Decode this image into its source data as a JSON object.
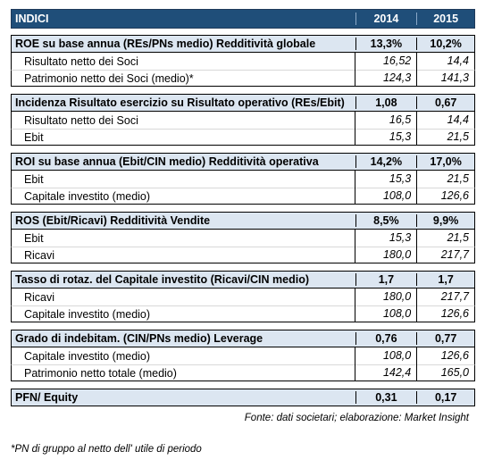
{
  "header": {
    "title": "INDICI",
    "year1": "2014",
    "year2": "2015"
  },
  "sections": [
    {
      "title": "ROE su base annua (REs/PNs medio) Redditività globale",
      "v1": "13,3%",
      "v2": "10,2%",
      "rows": [
        {
          "label": "Risultato netto dei Soci",
          "v1": "16,52",
          "v2": "14,4"
        },
        {
          "label": "Patrimonio netto dei Soci (medio)*",
          "v1": "124,3",
          "v2": "141,3"
        }
      ]
    },
    {
      "title": "Incidenza Risultato esercizio su Risultato operativo (REs/Ebit)",
      "v1": "1,08",
      "v2": "0,67",
      "rows": [
        {
          "label": "Risultato netto dei Soci",
          "v1": "16,5",
          "v2": "14,4"
        },
        {
          "label": "Ebit",
          "v1": "15,3",
          "v2": "21,5"
        }
      ]
    },
    {
      "title": "ROI su base annua (Ebit/CIN medio) Redditività operativa",
      "v1": "14,2%",
      "v2": "17,0%",
      "rows": [
        {
          "label": "Ebit",
          "v1": "15,3",
          "v2": "21,5"
        },
        {
          "label": "Capitale investito (medio)",
          "v1": "108,0",
          "v2": "126,6"
        }
      ]
    },
    {
      "title": "ROS (Ebit/Ricavi) Redditività Vendite",
      "v1": "8,5%",
      "v2": "9,9%",
      "rows": [
        {
          "label": "Ebit",
          "v1": "15,3",
          "v2": "21,5"
        },
        {
          "label": "Ricavi",
          "v1": "180,0",
          "v2": "217,7"
        }
      ]
    },
    {
      "title": "Tasso di rotaz. del Capitale investito (Ricavi/CIN medio)",
      "v1": "1,7",
      "v2": "1,7",
      "rows": [
        {
          "label": "Ricavi",
          "v1": "180,0",
          "v2": "217,7"
        },
        {
          "label": "Capitale investito (medio)",
          "v1": "108,0",
          "v2": "126,6"
        }
      ]
    },
    {
      "title": "Grado di indebitam. (CIN/PNs medio) Leverage",
      "v1": "0,76",
      "v2": "0,77",
      "rows": [
        {
          "label": "Capitale investito (medio)",
          "v1": "108,0",
          "v2": "126,6"
        },
        {
          "label": "Patrimonio netto totale (medio)",
          "v1": "142,4",
          "v2": "165,0"
        }
      ]
    },
    {
      "title": "PFN/ Equity",
      "v1": "0,31",
      "v2": "0,17",
      "rows": []
    }
  ],
  "source": "Fonte: dati societari; elaborazione: Market Insight",
  "footnote": "*PN di gruppo al netto dell' utile di periodo",
  "colors": {
    "header_bg": "#1f4e79",
    "section_bg": "#dce6f1"
  }
}
